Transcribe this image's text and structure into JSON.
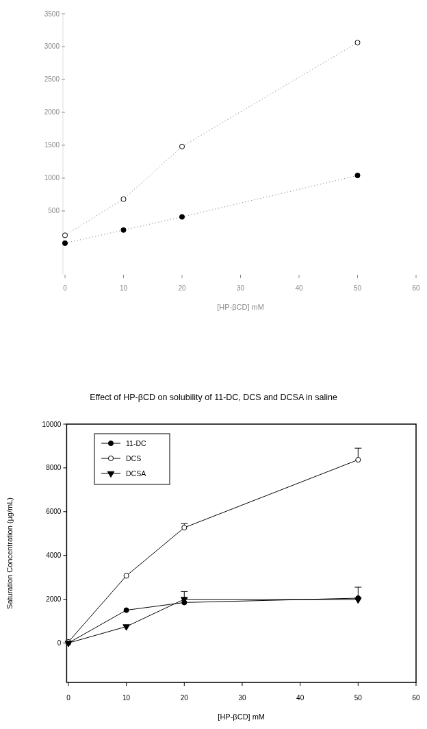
{
  "chart_data": [
    {
      "type": "line",
      "xlabel": "[HP-βCD] mM",
      "xlim": [
        0,
        60
      ],
      "xticks": [
        0,
        10,
        20,
        30,
        40,
        50,
        60
      ],
      "ylim": [
        -470,
        3500
      ],
      "yticks": [
        500,
        1000,
        1500,
        2000,
        2500,
        3000,
        3500
      ],
      "x": [
        0,
        10,
        20,
        50
      ],
      "line_style": "dotted",
      "series": [
        {
          "color": "#ffffff",
          "marker": "circle",
          "values": [
            130,
            680,
            1480,
            3060
          ]
        },
        {
          "color": "#000000",
          "marker": "circle",
          "values": [
            10,
            210,
            410,
            1040
          ]
        }
      ]
    },
    {
      "type": "line",
      "title": "Effect of HP-βCD on solubility of 11-DC, DCS and DCSA in saline",
      "xlabel": "[HP-βCD] mM",
      "ylabel": "Saturation Concentration (µg/mL)",
      "xlim": [
        -0.3,
        60
      ],
      "xticks": [
        0,
        10,
        20,
        30,
        40,
        50,
        60
      ],
      "ylim": [
        -1800,
        10000
      ],
      "yticks": [
        0,
        2000,
        4000,
        6000,
        8000,
        10000
      ],
      "x": [
        0,
        10,
        20,
        50
      ],
      "legend": "top left",
      "line_style": "solid",
      "series": [
        {
          "name": "11-DC",
          "color": "#000000",
          "marker": "circle",
          "values": [
            0,
            1500,
            1850,
            2050
          ],
          "errors": [
            null,
            null,
            null,
            [
              2050,
              2550
            ]
          ]
        },
        {
          "name": "DCS",
          "color": "#ffffff",
          "marker": "circle",
          "values": [
            50,
            3070,
            5270,
            8370
          ],
          "errors": [
            null,
            null,
            [
              5270,
              5450
            ],
            [
              8370,
              8900
            ]
          ]
        },
        {
          "name": "DCSA",
          "color": "#000000",
          "marker": "triangle-down",
          "values": [
            0,
            750,
            2000,
            1980
          ],
          "errors": [
            null,
            null,
            [
              2000,
              2350
            ],
            null
          ]
        }
      ]
    }
  ]
}
